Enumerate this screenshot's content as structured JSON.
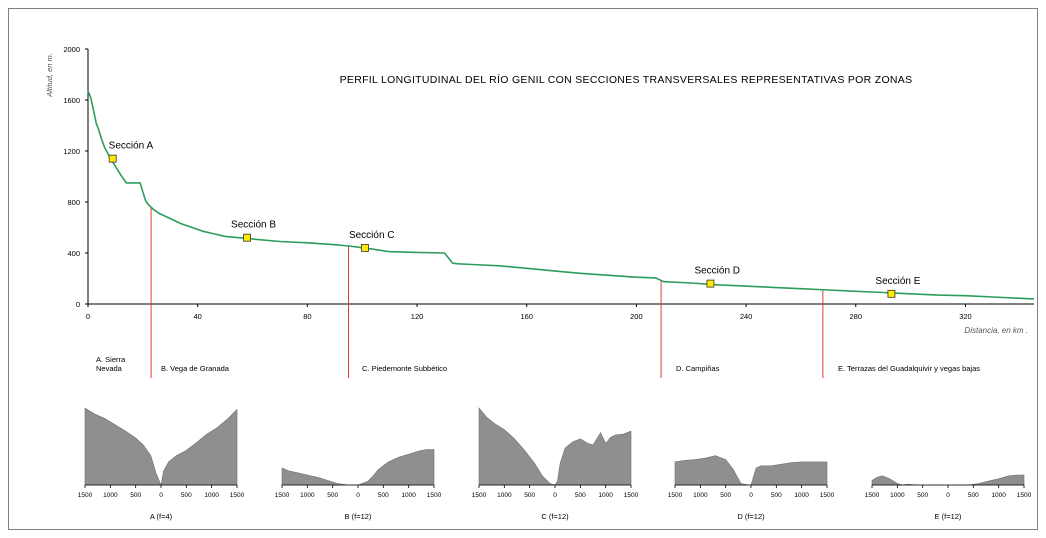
{
  "chart_data": {
    "type": "line",
    "title": "PERFIL LONGITUDINAL DEL RÍO GENIL CON SECCIONES TRANSVERSALES REPRESENTATIVAS POR ZONAS",
    "ylabel": "Altitud, en m.",
    "xlabel": "Distancia, en km .",
    "xlim": [
      0,
      345
    ],
    "ylim": [
      0,
      2000
    ],
    "x_ticks": [
      "0",
      "40",
      "80",
      "120",
      "160",
      "200",
      "240",
      "280",
      "320"
    ],
    "y_ticks": [
      "0",
      "400",
      "800",
      "1200",
      "1600",
      "2000"
    ],
    "grid": false,
    "line_color": "#2e9d5b",
    "profile": {
      "x": [
        0,
        1,
        2,
        3,
        4,
        5,
        6,
        8,
        10,
        12,
        14,
        16,
        18,
        19,
        20,
        21,
        22,
        24,
        26,
        28,
        30,
        34,
        38,
        42,
        46,
        50,
        55,
        60,
        70,
        80,
        90,
        95,
        98,
        100,
        104,
        110,
        120,
        130,
        133,
        135,
        140,
        150,
        160,
        170,
        180,
        190,
        200,
        207,
        210,
        220,
        230,
        240,
        250,
        260,
        270,
        280,
        290,
        300,
        310,
        320,
        330,
        340,
        345
      ],
      "y": [
        1670,
        1620,
        1520,
        1420,
        1360,
        1290,
        1230,
        1150,
        1080,
        1010,
        950,
        950,
        950,
        950,
        880,
        810,
        780,
        740,
        710,
        690,
        670,
        630,
        600,
        570,
        550,
        530,
        520,
        510,
        490,
        480,
        465,
        455,
        448,
        440,
        430,
        410,
        405,
        400,
        320,
        315,
        310,
        300,
        280,
        260,
        240,
        225,
        210,
        205,
        175,
        165,
        150,
        140,
        130,
        120,
        110,
        100,
        90,
        80,
        70,
        65,
        55,
        45,
        40
      ]
    },
    "sections": [
      {
        "label": "Sección A",
        "x": 9,
        "y": 1140
      },
      {
        "label": "Sección B",
        "x": 58,
        "y": 520
      },
      {
        "label": "Sección C",
        "x": 101,
        "y": 440
      },
      {
        "label": "Sección D",
        "x": 227,
        "y": 160
      },
      {
        "label": "Sección E",
        "x": 293,
        "y": 80
      }
    ],
    "zone_boundaries_km": [
      23,
      95,
      209,
      268
    ],
    "zones": [
      {
        "label": "A. Sierra Nevada"
      },
      {
        "label": "B. Vega de Granada"
      },
      {
        "label": "C. Piedemonte Subbético"
      },
      {
        "label": "D. Campiñas"
      },
      {
        "label": "E. Terrazas del Guadalquivir y vegas bajas"
      }
    ],
    "cross_sections": [
      {
        "label": "A (f=4)",
        "ticks": [
          "1500",
          "1000",
          "500",
          "0",
          "500",
          "1000",
          "1500"
        ],
        "x": [
          -1500,
          -1300,
          -1100,
          -900,
          -700,
          -500,
          -350,
          -200,
          -100,
          0,
          50,
          150,
          300,
          500,
          700,
          900,
          1100,
          1300,
          1500
        ],
        "h": [
          1.0,
          0.92,
          0.86,
          0.78,
          0.7,
          0.61,
          0.52,
          0.38,
          0.16,
          0.0,
          0.18,
          0.3,
          0.38,
          0.45,
          0.55,
          0.66,
          0.74,
          0.85,
          0.98
        ]
      },
      {
        "label": "B (f=12)",
        "ticks": [
          "1500",
          "1000",
          "500",
          "0",
          "500",
          "1000",
          "1500"
        ],
        "x": [
          -1500,
          -1350,
          -1200,
          -1000,
          -800,
          -600,
          -400,
          -200,
          0,
          200,
          300,
          400,
          500,
          600,
          800,
          1000,
          1200,
          1350,
          1500
        ],
        "h": [
          0.22,
          0.18,
          0.16,
          0.13,
          0.1,
          0.06,
          0.02,
          0.0,
          0.0,
          0.05,
          0.12,
          0.2,
          0.25,
          0.3,
          0.36,
          0.4,
          0.44,
          0.46,
          0.46
        ]
      },
      {
        "label": "C (f=12)",
        "ticks": [
          "1500",
          "1000",
          "500",
          "0",
          "500",
          "1000",
          "1500"
        ],
        "x": [
          -1500,
          -1350,
          -1200,
          -1000,
          -800,
          -600,
          -400,
          -250,
          -100,
          0,
          50,
          100,
          200,
          350,
          500,
          650,
          750,
          900,
          1000,
          1100,
          1200,
          1350,
          1500
        ],
        "h": [
          1.0,
          0.88,
          0.8,
          0.72,
          0.6,
          0.45,
          0.28,
          0.12,
          0.02,
          0.0,
          0.05,
          0.28,
          0.48,
          0.56,
          0.6,
          0.54,
          0.52,
          0.68,
          0.54,
          0.62,
          0.65,
          0.66,
          0.7
        ]
      },
      {
        "label": "D (f=12)",
        "ticks": [
          "1500",
          "1000",
          "500",
          "0",
          "500",
          "1000",
          "1500"
        ],
        "x": [
          -1500,
          -1300,
          -1100,
          -900,
          -700,
          -500,
          -350,
          -200,
          -50,
          0,
          100,
          200,
          400,
          600,
          800,
          1000,
          1200,
          1500
        ],
        "h": [
          0.3,
          0.32,
          0.33,
          0.35,
          0.38,
          0.33,
          0.2,
          0.02,
          0.0,
          0.0,
          0.22,
          0.25,
          0.25,
          0.27,
          0.29,
          0.3,
          0.3,
          0.3
        ]
      },
      {
        "label": "E (f=12)",
        "ticks": [
          "1500",
          "1000",
          "500",
          "0",
          "500",
          "1000",
          "1500"
        ],
        "x": [
          -1500,
          -1400,
          -1300,
          -1150,
          -1000,
          -900,
          -800,
          -600,
          -400,
          -200,
          0,
          200,
          400,
          600,
          800,
          1000,
          1200,
          1350,
          1500
        ],
        "h": [
          0.06,
          0.1,
          0.12,
          0.08,
          0.02,
          0.0,
          0.01,
          0.0,
          0.0,
          0.0,
          0.0,
          0.0,
          0.0,
          0.02,
          0.05,
          0.08,
          0.12,
          0.13,
          0.13
        ]
      }
    ]
  }
}
